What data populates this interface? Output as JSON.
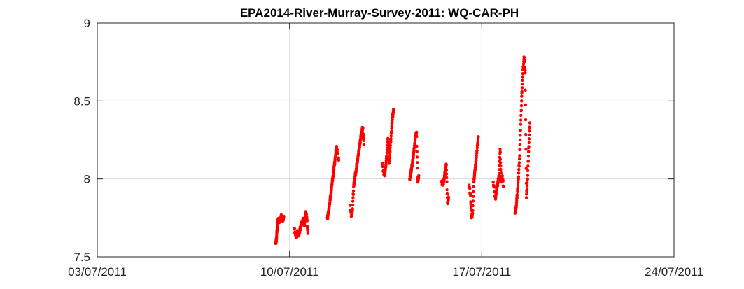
{
  "chart_data": {
    "type": "scatter",
    "title": "EPA2014-River-Murray-Survey-2011: WQ-CAR-PH",
    "xlabel": "",
    "ylabel": "",
    "x_axis": "date",
    "xlim": [
      "03/07/2011",
      "24/07/2011"
    ],
    "ylim": [
      7.5,
      9
    ],
    "x_ticks": [
      "03/07/2011",
      "10/07/2011",
      "17/07/2011",
      "24/07/2011"
    ],
    "y_ticks": [
      "7.5",
      "8",
      "8.5",
      "9"
    ],
    "grid": true,
    "marker_color": "#ff0000",
    "series": [
      {
        "points": [
          [
            "09/07/2011 12:00",
            7.59
          ],
          [
            "09/07/2011 12:30",
            7.61
          ],
          [
            "09/07/2011 13:00",
            7.66
          ],
          [
            "09/07/2011 13:30",
            7.7
          ],
          [
            "09/07/2011 14:00",
            7.74
          ],
          [
            "09/07/2011 15:00",
            7.72
          ],
          [
            "09/07/2011 16:00",
            7.75
          ],
          [
            "09/07/2011 17:00",
            7.76
          ],
          [
            "09/07/2011 18:00",
            7.73
          ],
          [
            "09/07/2011 19:00",
            7.76
          ],
          [
            "10/07/2011 04:00",
            7.68
          ],
          [
            "10/07/2011 05:00",
            7.65
          ],
          [
            "10/07/2011 06:00",
            7.63
          ],
          [
            "10/07/2011 07:00",
            7.66
          ],
          [
            "10/07/2011 08:00",
            7.64
          ],
          [
            "10/07/2011 09:00",
            7.67
          ],
          [
            "10/07/2011 10:00",
            7.7
          ],
          [
            "10/07/2011 11:00",
            7.72
          ],
          [
            "10/07/2011 12:00",
            7.74
          ],
          [
            "10/07/2011 13:00",
            7.7
          ],
          [
            "10/07/2011 14:00",
            7.78
          ],
          [
            "10/07/2011 15:00",
            7.76
          ],
          [
            "10/07/2011 16:00",
            7.65
          ],
          [
            "11/07/2011 09:00",
            7.75
          ],
          [
            "11/07/2011 10:00",
            7.78
          ],
          [
            "11/07/2011 11:00",
            7.84
          ],
          [
            "11/07/2011 12:00",
            7.9
          ],
          [
            "11/07/2011 13:00",
            7.96
          ],
          [
            "11/07/2011 14:00",
            8.02
          ],
          [
            "11/07/2011 15:00",
            8.08
          ],
          [
            "11/07/2011 16:00",
            8.14
          ],
          [
            "11/07/2011 17:00",
            8.2
          ],
          [
            "11/07/2011 18:00",
            8.17
          ],
          [
            "11/07/2011 19:00",
            8.12
          ],
          [
            "12/07/2011 05:00",
            7.83
          ],
          [
            "12/07/2011 06:00",
            7.76
          ],
          [
            "12/07/2011 07:00",
            7.8
          ],
          [
            "12/07/2011 08:00",
            7.95
          ],
          [
            "12/07/2011 09:00",
            8.0
          ],
          [
            "12/07/2011 10:00",
            8.05
          ],
          [
            "12/07/2011 11:00",
            8.1
          ],
          [
            "12/07/2011 12:00",
            8.15
          ],
          [
            "12/07/2011 13:00",
            8.2
          ],
          [
            "12/07/2011 14:00",
            8.25
          ],
          [
            "12/07/2011 15:00",
            8.3
          ],
          [
            "12/07/2011 16:00",
            8.33
          ],
          [
            "12/07/2011 17:00",
            8.22
          ],
          [
            "13/07/2011 09:00",
            8.1
          ],
          [
            "13/07/2011 10:00",
            8.05
          ],
          [
            "13/07/2011 11:00",
            8.02
          ],
          [
            "13/07/2011 12:00",
            8.08
          ],
          [
            "13/07/2011 13:00",
            8.15
          ],
          [
            "13/07/2011 14:00",
            8.26
          ],
          [
            "13/07/2011 15:00",
            8.1
          ],
          [
            "13/07/2011 16:00",
            8.2
          ],
          [
            "13/07/2011 17:00",
            8.3
          ],
          [
            "13/07/2011 18:00",
            8.4
          ],
          [
            "13/07/2011 19:00",
            8.44
          ],
          [
            "14/07/2011 09:00",
            8.0
          ],
          [
            "14/07/2011 10:00",
            8.04
          ],
          [
            "14/07/2011 11:00",
            8.08
          ],
          [
            "14/07/2011 12:00",
            8.14
          ],
          [
            "14/07/2011 13:00",
            8.2
          ],
          [
            "14/07/2011 14:00",
            8.27
          ],
          [
            "14/07/2011 15:00",
            8.3
          ],
          [
            "14/07/2011 16:00",
            7.98
          ],
          [
            "14/07/2011 17:00",
            8.02
          ],
          [
            "15/07/2011 13:00",
            7.98
          ],
          [
            "15/07/2011 14:00",
            7.96
          ],
          [
            "15/07/2011 15:00",
            8.0
          ],
          [
            "15/07/2011 16:00",
            8.05
          ],
          [
            "15/07/2011 17:00",
            8.09
          ],
          [
            "15/07/2011 18:00",
            7.85
          ],
          [
            "15/07/2011 19:00",
            7.88
          ],
          [
            "16/07/2011 13:00",
            7.96
          ],
          [
            "16/07/2011 14:00",
            7.9
          ],
          [
            "16/07/2011 15:00",
            7.75
          ],
          [
            "16/07/2011 16:00",
            7.78
          ],
          [
            "16/07/2011 17:00",
            7.98
          ],
          [
            "16/07/2011 18:00",
            8.05
          ],
          [
            "16/07/2011 19:00",
            8.12
          ],
          [
            "16/07/2011 20:00",
            8.2
          ],
          [
            "16/07/2011 21:00",
            8.27
          ],
          [
            "17/07/2011 10:00",
            7.98
          ],
          [
            "17/07/2011 11:00",
            7.92
          ],
          [
            "17/07/2011 12:00",
            7.87
          ],
          [
            "17/07/2011 13:00",
            7.95
          ],
          [
            "17/07/2011 14:00",
            7.97
          ],
          [
            "17/07/2011 15:00",
            8.02
          ],
          [
            "17/07/2011 16:00",
            8.19
          ],
          [
            "17/07/2011 17:00",
            7.98
          ],
          [
            "17/07/2011 18:00",
            8.02
          ],
          [
            "17/07/2011 19:00",
            7.95
          ],
          [
            "18/07/2011 05:00",
            7.78
          ],
          [
            "18/07/2011 06:00",
            7.82
          ],
          [
            "18/07/2011 07:00",
            7.9
          ],
          [
            "18/07/2011 08:00",
            8.0
          ],
          [
            "18/07/2011 09:00",
            8.15
          ],
          [
            "18/07/2011 10:00",
            8.35
          ],
          [
            "18/07/2011 11:00",
            8.55
          ],
          [
            "18/07/2011 12:00",
            8.7
          ],
          [
            "18/07/2011 13:00",
            8.78
          ],
          [
            "18/07/2011 14:00",
            8.68
          ],
          [
            "18/07/2011 15:00",
            7.88
          ],
          [
            "18/07/2011 16:00",
            8.0
          ],
          [
            "18/07/2011 17:00",
            8.2
          ],
          [
            "18/07/2011 18:00",
            8.36
          ]
        ]
      }
    ]
  }
}
